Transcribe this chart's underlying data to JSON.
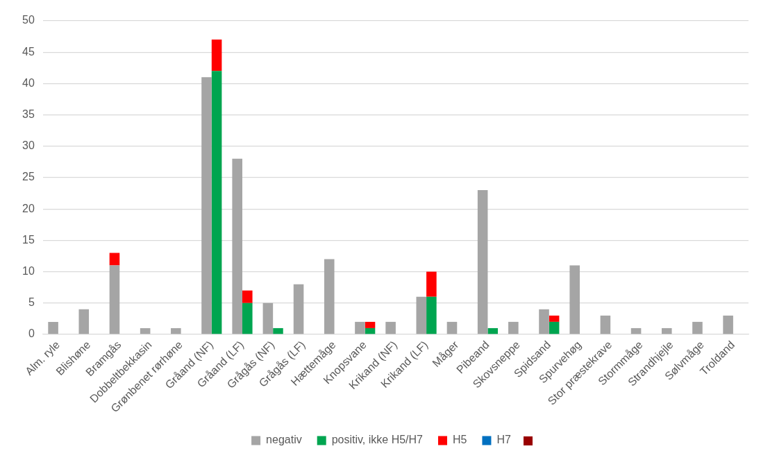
{
  "chart_data": {
    "type": "bar",
    "categories": [
      "Alm. ryle",
      "Blishøne",
      "Bramgås",
      "Dobbeltbekkasin",
      "Grønbenet rørhøne",
      "Gråand (NF)",
      "Gråand (LF)",
      "Grågås (NF)",
      "Grågås (LF)",
      "Hættemåge",
      "Knopsvane",
      "Krikand (NF)",
      "Krikand (LF)",
      "Måger",
      "Pibeand",
      "Skovsneppe",
      "Spidsand",
      "Spurvehøg",
      "Stor præstekrave",
      "Stormmåge",
      "Strandhjejle",
      "Sølvmåge",
      "Troldand"
    ],
    "series": [
      {
        "name": "negativ",
        "color": "#a5a5a5",
        "values": [
          2,
          4,
          11,
          1,
          1,
          41,
          28,
          5,
          8,
          12,
          2,
          2,
          6,
          2,
          23,
          2,
          4,
          11,
          3,
          1,
          1,
          2,
          3
        ]
      },
      {
        "color": "#ff0000",
        "base": [
          null,
          null,
          11,
          null,
          null,
          null,
          null,
          null,
          null,
          null,
          null,
          null,
          null,
          null,
          null,
          null,
          null,
          null,
          null,
          null,
          null,
          null,
          null
        ],
        "values": [
          null,
          null,
          2,
          null,
          null,
          null,
          null,
          null,
          null,
          null,
          null,
          null,
          null,
          null,
          null,
          null,
          null,
          null,
          null,
          null,
          null,
          null,
          null
        ]
      },
      {
        "name": "positiv, ikke H5/H7",
        "color": "#00a550",
        "values": [
          null,
          null,
          null,
          null,
          null,
          42,
          5,
          1,
          null,
          null,
          1,
          null,
          6,
          null,
          1,
          null,
          2,
          null,
          null,
          null,
          null,
          null,
          null
        ]
      },
      {
        "name": "H5",
        "color": "#ff0000",
        "base": [
          null,
          null,
          null,
          null,
          null,
          42,
          5,
          null,
          null,
          null,
          1,
          null,
          6,
          null,
          null,
          null,
          2,
          null,
          null,
          null,
          null,
          null,
          null
        ],
        "values": [
          null,
          null,
          null,
          null,
          null,
          5,
          2,
          null,
          null,
          null,
          1,
          null,
          4,
          null,
          null,
          null,
          1,
          null,
          null,
          null,
          null,
          null,
          null
        ]
      },
      {
        "name": "H7",
        "color": "#0070c0",
        "base": [
          null,
          null,
          null,
          null,
          null,
          null,
          null,
          null,
          null,
          null,
          null,
          null,
          null,
          null,
          null,
          null,
          null,
          null,
          null,
          null,
          null,
          null,
          null
        ],
        "values": [
          null,
          null,
          null,
          null,
          null,
          null,
          null,
          null,
          null,
          null,
          null,
          null,
          null,
          null,
          null,
          null,
          null,
          null,
          null,
          null,
          null,
          null,
          null
        ]
      }
    ],
    "ylim": [
      0,
      50
    ],
    "yticks": [
      0,
      5,
      10,
      15,
      20,
      25,
      30,
      35,
      40,
      45,
      50
    ],
    "grid": "y",
    "legend": "bottom"
  }
}
